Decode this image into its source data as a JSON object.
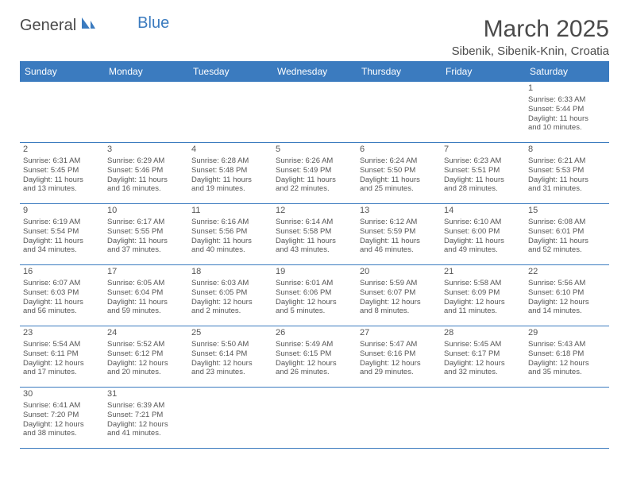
{
  "logo": {
    "part1": "General",
    "part2": "Blue"
  },
  "title": "March 2025",
  "location": "Sibenik, Sibenik-Knin, Croatia",
  "colors": {
    "header_bg": "#3b7bbf",
    "header_text": "#ffffff",
    "border": "#3b7bbf",
    "body_text": "#555555",
    "title_text": "#4a4a4a",
    "background": "#ffffff"
  },
  "typography": {
    "title_fontsize": 30,
    "location_fontsize": 15,
    "day_header_fontsize": 12,
    "cell_fontsize": 9.5
  },
  "day_headers": [
    "Sunday",
    "Monday",
    "Tuesday",
    "Wednesday",
    "Thursday",
    "Friday",
    "Saturday"
  ],
  "weeks": [
    [
      null,
      null,
      null,
      null,
      null,
      null,
      {
        "n": "1",
        "sr": "Sunrise: 6:33 AM",
        "ss": "Sunset: 5:44 PM",
        "dl1": "Daylight: 11 hours",
        "dl2": "and 10 minutes."
      }
    ],
    [
      {
        "n": "2",
        "sr": "Sunrise: 6:31 AM",
        "ss": "Sunset: 5:45 PM",
        "dl1": "Daylight: 11 hours",
        "dl2": "and 13 minutes."
      },
      {
        "n": "3",
        "sr": "Sunrise: 6:29 AM",
        "ss": "Sunset: 5:46 PM",
        "dl1": "Daylight: 11 hours",
        "dl2": "and 16 minutes."
      },
      {
        "n": "4",
        "sr": "Sunrise: 6:28 AM",
        "ss": "Sunset: 5:48 PM",
        "dl1": "Daylight: 11 hours",
        "dl2": "and 19 minutes."
      },
      {
        "n": "5",
        "sr": "Sunrise: 6:26 AM",
        "ss": "Sunset: 5:49 PM",
        "dl1": "Daylight: 11 hours",
        "dl2": "and 22 minutes."
      },
      {
        "n": "6",
        "sr": "Sunrise: 6:24 AM",
        "ss": "Sunset: 5:50 PM",
        "dl1": "Daylight: 11 hours",
        "dl2": "and 25 minutes."
      },
      {
        "n": "7",
        "sr": "Sunrise: 6:23 AM",
        "ss": "Sunset: 5:51 PM",
        "dl1": "Daylight: 11 hours",
        "dl2": "and 28 minutes."
      },
      {
        "n": "8",
        "sr": "Sunrise: 6:21 AM",
        "ss": "Sunset: 5:53 PM",
        "dl1": "Daylight: 11 hours",
        "dl2": "and 31 minutes."
      }
    ],
    [
      {
        "n": "9",
        "sr": "Sunrise: 6:19 AM",
        "ss": "Sunset: 5:54 PM",
        "dl1": "Daylight: 11 hours",
        "dl2": "and 34 minutes."
      },
      {
        "n": "10",
        "sr": "Sunrise: 6:17 AM",
        "ss": "Sunset: 5:55 PM",
        "dl1": "Daylight: 11 hours",
        "dl2": "and 37 minutes."
      },
      {
        "n": "11",
        "sr": "Sunrise: 6:16 AM",
        "ss": "Sunset: 5:56 PM",
        "dl1": "Daylight: 11 hours",
        "dl2": "and 40 minutes."
      },
      {
        "n": "12",
        "sr": "Sunrise: 6:14 AM",
        "ss": "Sunset: 5:58 PM",
        "dl1": "Daylight: 11 hours",
        "dl2": "and 43 minutes."
      },
      {
        "n": "13",
        "sr": "Sunrise: 6:12 AM",
        "ss": "Sunset: 5:59 PM",
        "dl1": "Daylight: 11 hours",
        "dl2": "and 46 minutes."
      },
      {
        "n": "14",
        "sr": "Sunrise: 6:10 AM",
        "ss": "Sunset: 6:00 PM",
        "dl1": "Daylight: 11 hours",
        "dl2": "and 49 minutes."
      },
      {
        "n": "15",
        "sr": "Sunrise: 6:08 AM",
        "ss": "Sunset: 6:01 PM",
        "dl1": "Daylight: 11 hours",
        "dl2": "and 52 minutes."
      }
    ],
    [
      {
        "n": "16",
        "sr": "Sunrise: 6:07 AM",
        "ss": "Sunset: 6:03 PM",
        "dl1": "Daylight: 11 hours",
        "dl2": "and 56 minutes."
      },
      {
        "n": "17",
        "sr": "Sunrise: 6:05 AM",
        "ss": "Sunset: 6:04 PM",
        "dl1": "Daylight: 11 hours",
        "dl2": "and 59 minutes."
      },
      {
        "n": "18",
        "sr": "Sunrise: 6:03 AM",
        "ss": "Sunset: 6:05 PM",
        "dl1": "Daylight: 12 hours",
        "dl2": "and 2 minutes."
      },
      {
        "n": "19",
        "sr": "Sunrise: 6:01 AM",
        "ss": "Sunset: 6:06 PM",
        "dl1": "Daylight: 12 hours",
        "dl2": "and 5 minutes."
      },
      {
        "n": "20",
        "sr": "Sunrise: 5:59 AM",
        "ss": "Sunset: 6:07 PM",
        "dl1": "Daylight: 12 hours",
        "dl2": "and 8 minutes."
      },
      {
        "n": "21",
        "sr": "Sunrise: 5:58 AM",
        "ss": "Sunset: 6:09 PM",
        "dl1": "Daylight: 12 hours",
        "dl2": "and 11 minutes."
      },
      {
        "n": "22",
        "sr": "Sunrise: 5:56 AM",
        "ss": "Sunset: 6:10 PM",
        "dl1": "Daylight: 12 hours",
        "dl2": "and 14 minutes."
      }
    ],
    [
      {
        "n": "23",
        "sr": "Sunrise: 5:54 AM",
        "ss": "Sunset: 6:11 PM",
        "dl1": "Daylight: 12 hours",
        "dl2": "and 17 minutes."
      },
      {
        "n": "24",
        "sr": "Sunrise: 5:52 AM",
        "ss": "Sunset: 6:12 PM",
        "dl1": "Daylight: 12 hours",
        "dl2": "and 20 minutes."
      },
      {
        "n": "25",
        "sr": "Sunrise: 5:50 AM",
        "ss": "Sunset: 6:14 PM",
        "dl1": "Daylight: 12 hours",
        "dl2": "and 23 minutes."
      },
      {
        "n": "26",
        "sr": "Sunrise: 5:49 AM",
        "ss": "Sunset: 6:15 PM",
        "dl1": "Daylight: 12 hours",
        "dl2": "and 26 minutes."
      },
      {
        "n": "27",
        "sr": "Sunrise: 5:47 AM",
        "ss": "Sunset: 6:16 PM",
        "dl1": "Daylight: 12 hours",
        "dl2": "and 29 minutes."
      },
      {
        "n": "28",
        "sr": "Sunrise: 5:45 AM",
        "ss": "Sunset: 6:17 PM",
        "dl1": "Daylight: 12 hours",
        "dl2": "and 32 minutes."
      },
      {
        "n": "29",
        "sr": "Sunrise: 5:43 AM",
        "ss": "Sunset: 6:18 PM",
        "dl1": "Daylight: 12 hours",
        "dl2": "and 35 minutes."
      }
    ],
    [
      {
        "n": "30",
        "sr": "Sunrise: 6:41 AM",
        "ss": "Sunset: 7:20 PM",
        "dl1": "Daylight: 12 hours",
        "dl2": "and 38 minutes."
      },
      {
        "n": "31",
        "sr": "Sunrise: 6:39 AM",
        "ss": "Sunset: 7:21 PM",
        "dl1": "Daylight: 12 hours",
        "dl2": "and 41 minutes."
      },
      null,
      null,
      null,
      null,
      null
    ]
  ]
}
